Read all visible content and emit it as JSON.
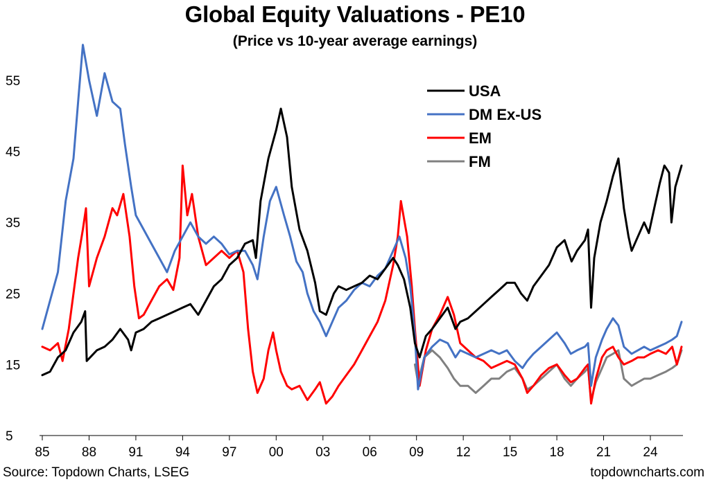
{
  "header": {
    "title": "Global Equity Valuations - PE10",
    "subtitle": "(Price vs 10-year average earnings)"
  },
  "footer": {
    "source": "Source: Topdown Charts, LSEG",
    "brand": "topdowncharts.com"
  },
  "chart_data": {
    "type": "line",
    "title": "Global Equity Valuations - PE10",
    "subtitle": "(Price vs 10-year average earnings)",
    "xlabel": "",
    "ylabel": "",
    "x_tick_labels": [
      "85",
      "88",
      "91",
      "94",
      "97",
      "00",
      "03",
      "06",
      "09",
      "12",
      "15",
      "18",
      "21",
      "24"
    ],
    "x_tick_values": [
      1985,
      1988,
      1991,
      1994,
      1997,
      2000,
      2003,
      2006,
      2009,
      2012,
      2015,
      2018,
      2021,
      2024
    ],
    "y_tick_labels": [
      "5",
      "15",
      "25",
      "35",
      "45",
      "55"
    ],
    "y_tick_values": [
      5,
      15,
      25,
      35,
      45,
      55
    ],
    "xlim": [
      1985,
      2026.3
    ],
    "ylim": [
      5,
      60
    ],
    "grid": false,
    "legend_position": "top-right",
    "series": [
      {
        "name": "USA",
        "color": "#000000",
        "x": [
          1985.0,
          1985.5,
          1986.0,
          1986.5,
          1987.0,
          1987.5,
          1987.75,
          1987.85,
          1988.5,
          1989.0,
          1989.5,
          1990.0,
          1990.5,
          1990.7,
          1991.0,
          1991.5,
          1992.0,
          1992.5,
          1993.0,
          1993.5,
          1994.0,
          1994.5,
          1995.0,
          1995.5,
          1996.0,
          1996.5,
          1997.0,
          1997.5,
          1998.0,
          1998.5,
          1998.7,
          1999.0,
          1999.5,
          2000.0,
          2000.3,
          2000.7,
          2001.0,
          2001.5,
          2002.0,
          2002.5,
          2002.8,
          2003.2,
          2003.7,
          2004.0,
          2004.5,
          2005.0,
          2005.5,
          2006.0,
          2006.5,
          2007.0,
          2007.5,
          2007.8,
          2008.2,
          2008.6,
          2008.9,
          2009.2,
          2009.6,
          2010.0,
          2010.5,
          2011.0,
          2011.5,
          2011.8,
          2012.3,
          2012.8,
          2013.3,
          2013.8,
          2014.3,
          2014.8,
          2015.3,
          2015.7,
          2016.1,
          2016.5,
          2017.0,
          2017.5,
          2018.0,
          2018.5,
          2018.95,
          2019.3,
          2019.8,
          2020.0,
          2020.2,
          2020.4,
          2020.8,
          2021.2,
          2021.6,
          2021.95,
          2022.3,
          2022.6,
          2022.8,
          2023.2,
          2023.6,
          2023.9,
          2024.3,
          2024.6,
          2024.9,
          2025.2,
          2025.35,
          2025.6,
          2026.0
        ],
        "y": [
          13.5,
          14.0,
          16.0,
          17.0,
          19.5,
          21.0,
          22.5,
          15.5,
          17.0,
          17.5,
          18.5,
          20.0,
          18.5,
          17.0,
          19.5,
          20.0,
          21.0,
          21.5,
          22.0,
          22.5,
          23.0,
          23.5,
          22.0,
          24.0,
          26.0,
          27.0,
          29.0,
          30.0,
          32.0,
          32.5,
          30.0,
          38.0,
          44.0,
          48.0,
          51.0,
          47.0,
          40.0,
          34.0,
          31.0,
          26.5,
          22.5,
          22.0,
          25.0,
          26.0,
          25.5,
          26.0,
          26.5,
          27.5,
          27.0,
          28.5,
          30.0,
          29.0,
          27.0,
          23.0,
          18.0,
          16.0,
          19.0,
          20.0,
          21.5,
          23.0,
          20.0,
          21.0,
          21.5,
          22.5,
          23.5,
          24.5,
          25.5,
          26.5,
          26.5,
          25.0,
          24.0,
          26.0,
          27.5,
          29.0,
          31.5,
          32.5,
          29.5,
          31.0,
          32.5,
          34.0,
          23.0,
          30.0,
          35.0,
          38.0,
          41.5,
          44.0,
          37.0,
          33.0,
          31.0,
          33.0,
          35.0,
          33.5,
          37.5,
          40.5,
          43.0,
          42.0,
          35.0,
          40.0,
          43.0
        ]
      },
      {
        "name": "DM Ex-US",
        "color": "#4472c4",
        "x": [
          1985.0,
          1985.5,
          1986.0,
          1986.5,
          1987.0,
          1987.3,
          1987.6,
          1988.0,
          1988.5,
          1989.0,
          1989.5,
          1990.0,
          1990.3,
          1990.7,
          1991.0,
          1991.5,
          1992.0,
          1992.5,
          1993.0,
          1993.5,
          1994.0,
          1994.5,
          1995.0,
          1995.5,
          1996.0,
          1996.5,
          1997.0,
          1997.5,
          1998.0,
          1998.5,
          1998.8,
          1999.2,
          1999.6,
          2000.0,
          2000.5,
          2000.9,
          2001.3,
          2001.7,
          2002.0,
          2002.4,
          2002.8,
          2003.2,
          2003.6,
          2004.0,
          2004.5,
          2005.0,
          2005.5,
          2006.0,
          2006.5,
          2007.0,
          2007.5,
          2007.9,
          2008.3,
          2008.6,
          2008.9,
          2009.1,
          2009.5,
          2010.0,
          2010.5,
          2011.0,
          2011.5,
          2011.8,
          2012.3,
          2012.8,
          2013.3,
          2013.8,
          2014.3,
          2014.8,
          2015.3,
          2015.8,
          2016.1,
          2016.5,
          2017.0,
          2017.5,
          2018.0,
          2018.5,
          2018.9,
          2019.3,
          2019.8,
          2020.0,
          2020.2,
          2020.5,
          2020.9,
          2021.2,
          2021.6,
          2021.95,
          2022.3,
          2022.8,
          2023.2,
          2023.6,
          2024.0,
          2024.5,
          2025.0,
          2025.4,
          2025.7,
          2026.0
        ],
        "y": [
          20.0,
          24.0,
          28.0,
          38.0,
          44.0,
          52.0,
          60.0,
          55.0,
          50.0,
          56.0,
          52.0,
          51.0,
          46.0,
          40.0,
          36.0,
          34.0,
          32.0,
          30.0,
          28.0,
          31.0,
          33.0,
          35.0,
          33.0,
          32.0,
          33.0,
          32.0,
          30.5,
          31.0,
          31.0,
          29.0,
          27.0,
          33.0,
          38.0,
          40.0,
          36.0,
          33.0,
          29.5,
          28.0,
          25.0,
          22.5,
          21.0,
          19.0,
          21.0,
          23.0,
          24.0,
          25.5,
          26.5,
          26.0,
          27.5,
          28.5,
          31.0,
          33.0,
          30.0,
          26.0,
          19.0,
          11.5,
          16.0,
          17.5,
          18.5,
          18.0,
          16.0,
          17.0,
          16.5,
          16.0,
          16.5,
          17.0,
          16.5,
          17.0,
          15.5,
          14.5,
          15.5,
          16.5,
          17.5,
          18.5,
          19.5,
          18.0,
          16.5,
          17.0,
          17.5,
          18.0,
          12.0,
          16.0,
          18.5,
          20.0,
          21.5,
          20.5,
          17.5,
          16.5,
          17.0,
          17.5,
          17.0,
          17.5,
          18.0,
          18.5,
          19.0,
          21.0
        ]
      },
      {
        "name": "EM",
        "color": "#ff0000",
        "x": [
          1985.0,
          1985.5,
          1986.0,
          1986.3,
          1986.7,
          1987.0,
          1987.3,
          1987.6,
          1987.8,
          1988.0,
          1988.5,
          1989.0,
          1989.5,
          1989.8,
          1990.2,
          1990.6,
          1990.9,
          1991.2,
          1991.5,
          1992.0,
          1992.5,
          1993.0,
          1993.4,
          1993.8,
          1994.0,
          1994.3,
          1994.6,
          1995.0,
          1995.5,
          1996.0,
          1996.5,
          1997.0,
          1997.5,
          1997.9,
          1998.2,
          1998.5,
          1998.8,
          1999.2,
          1999.5,
          1999.8,
          2000.0,
          2000.3,
          2000.7,
          2001.0,
          2001.5,
          2002.0,
          2002.5,
          2002.8,
          2003.2,
          2003.6,
          2004.0,
          2004.5,
          2005.0,
          2005.5,
          2006.0,
          2006.5,
          2007.0,
          2007.5,
          2007.8,
          2008.0,
          2008.4,
          2008.7,
          2008.9,
          2009.2,
          2009.6,
          2010.0,
          2010.5,
          2011.0,
          2011.4,
          2011.8,
          2012.3,
          2012.8,
          2013.3,
          2013.8,
          2014.3,
          2014.8,
          2015.3,
          2015.8,
          2016.1,
          2016.5,
          2017.0,
          2017.5,
          2018.0,
          2018.5,
          2018.9,
          2019.3,
          2019.8,
          2020.0,
          2020.2,
          2020.5,
          2020.9,
          2021.2,
          2021.6,
          2021.95,
          2022.3,
          2022.8,
          2023.2,
          2023.6,
          2024.0,
          2024.5,
          2025.0,
          2025.4,
          2025.7,
          2026.0
        ],
        "y": [
          17.5,
          17.0,
          18.0,
          15.5,
          20.0,
          25.0,
          30.0,
          34.0,
          37.0,
          26.0,
          30.0,
          33.0,
          37.0,
          36.0,
          39.0,
          33.0,
          26.0,
          21.5,
          22.0,
          24.0,
          26.0,
          27.0,
          25.5,
          30.0,
          43.0,
          36.0,
          39.0,
          33.0,
          29.0,
          30.0,
          31.0,
          30.0,
          31.0,
          28.0,
          20.0,
          14.0,
          11.0,
          13.0,
          17.0,
          19.5,
          17.0,
          14.0,
          12.0,
          11.5,
          12.0,
          10.0,
          11.5,
          12.5,
          9.5,
          10.5,
          12.0,
          13.5,
          15.0,
          17.0,
          19.0,
          21.0,
          24.0,
          29.0,
          33.0,
          38.0,
          33.0,
          26.0,
          20.0,
          12.0,
          17.0,
          20.0,
          22.0,
          24.5,
          22.0,
          18.0,
          17.0,
          16.0,
          15.5,
          14.5,
          15.0,
          15.5,
          15.0,
          13.0,
          11.0,
          12.0,
          13.5,
          14.5,
          15.0,
          13.5,
          12.5,
          13.0,
          14.5,
          15.0,
          9.5,
          13.0,
          16.0,
          17.0,
          17.5,
          16.0,
          15.0,
          15.5,
          16.0,
          16.0,
          16.5,
          17.0,
          16.5,
          17.5,
          15.0,
          17.5
        ]
      },
      {
        "name": "FM",
        "color": "#808080",
        "x": [
          2008.9,
          2009.1,
          2009.5,
          2010.0,
          2010.5,
          2011.0,
          2011.4,
          2011.8,
          2012.3,
          2012.8,
          2013.3,
          2013.8,
          2014.3,
          2014.8,
          2015.3,
          2015.8,
          2016.1,
          2016.5,
          2017.0,
          2017.5,
          2018.0,
          2018.5,
          2018.9,
          2019.3,
          2019.8,
          2020.0,
          2020.2,
          2020.5,
          2020.9,
          2021.2,
          2021.6,
          2021.95,
          2022.3,
          2022.8,
          2023.2,
          2023.6,
          2024.0,
          2024.5,
          2025.0,
          2025.4,
          2025.7,
          2026.0
        ],
        "y": [
          15.0,
          12.5,
          16.0,
          17.0,
          16.0,
          14.5,
          13.0,
          12.0,
          12.0,
          11.0,
          12.0,
          13.0,
          13.0,
          14.0,
          14.5,
          13.0,
          11.5,
          12.0,
          13.0,
          14.0,
          15.0,
          13.0,
          12.0,
          13.0,
          14.0,
          14.5,
          10.0,
          12.5,
          14.5,
          16.0,
          16.5,
          17.0,
          13.0,
          12.0,
          12.5,
          13.0,
          13.0,
          13.5,
          14.0,
          14.5,
          15.0,
          17.0
        ]
      }
    ]
  }
}
